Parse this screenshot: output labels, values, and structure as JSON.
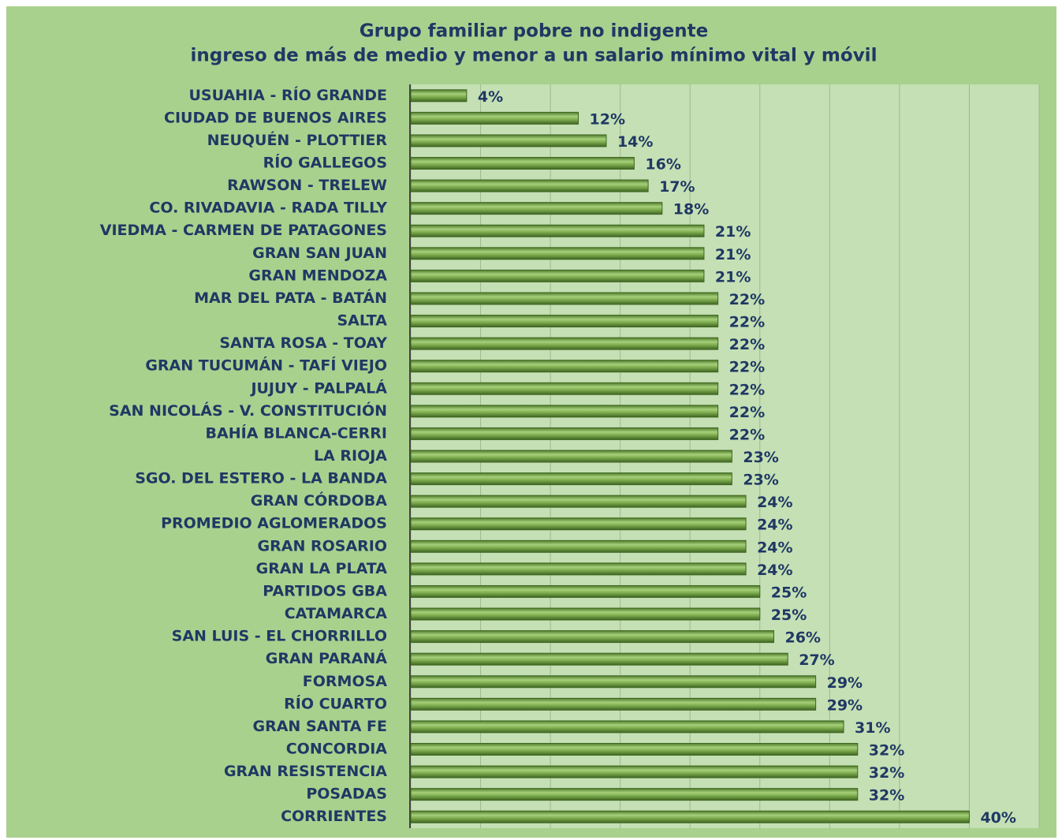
{
  "chart_data": {
    "type": "barh",
    "title": [
      "Grupo familiar pobre no indigente",
      "ingreso de más de medio y menor a un salario mínimo vital y móvil"
    ],
    "categories": [
      "USUAHIA - RÍO GRANDE",
      "CIUDAD DE BUENOS AIRES",
      "NEUQUÉN - PLOTTIER",
      "RÍO GALLEGOS",
      "RAWSON - TRELEW",
      "CO. RIVADAVIA - RADA TILLY",
      "VIEDMA - CARMEN DE PATAGONES",
      "GRAN SAN JUAN",
      "GRAN MENDOZA",
      "MAR DEL PATA - BATÁN",
      "SALTA",
      "SANTA ROSA - TOAY",
      "GRAN TUCUMÁN - TAFÍ VIEJO",
      "JUJUY - PALPALÁ",
      "SAN NICOLÁS - V. CONSTITUCIÓN",
      "BAHÍA BLANCA-CERRI",
      "LA RIOJA",
      "SGO. DEL ESTERO - LA BANDA",
      "GRAN CÓRDOBA",
      "PROMEDIO AGLOMERADOS",
      "GRAN ROSARIO",
      "GRAN LA PLATA",
      "PARTIDOS GBA",
      "CATAMARCA",
      "SAN LUIS - EL CHORRILLO",
      "GRAN PARANÁ",
      "FORMOSA",
      "RÍO CUARTO",
      "GRAN SANTA FE",
      "CONCORDIA",
      "GRAN RESISTENCIA",
      "POSADAS",
      "CORRIENTES"
    ],
    "values": [
      4,
      12,
      14,
      16,
      17,
      18,
      21,
      21,
      21,
      22,
      22,
      22,
      22,
      22,
      22,
      22,
      23,
      23,
      24,
      24,
      24,
      24,
      25,
      25,
      26,
      27,
      29,
      29,
      31,
      32,
      32,
      32,
      40
    ],
    "value_labels": [
      "4%",
      "12%",
      "14%",
      "16%",
      "17%",
      "18%",
      "21%",
      "21%",
      "21%",
      "22%",
      "22%",
      "22%",
      "22%",
      "22%",
      "22%",
      "22%",
      "23%",
      "23%",
      "24%",
      "24%",
      "24%",
      "24%",
      "25%",
      "25%",
      "26%",
      "27%",
      "29%",
      "29%",
      "31%",
      "32%",
      "32%",
      "32%",
      "40%"
    ],
    "color": "#76a447",
    "xlim": [
      0,
      45
    ],
    "xticks": [
      0,
      5,
      10,
      15,
      20,
      25,
      30,
      35,
      40,
      45
    ],
    "grid": true
  }
}
